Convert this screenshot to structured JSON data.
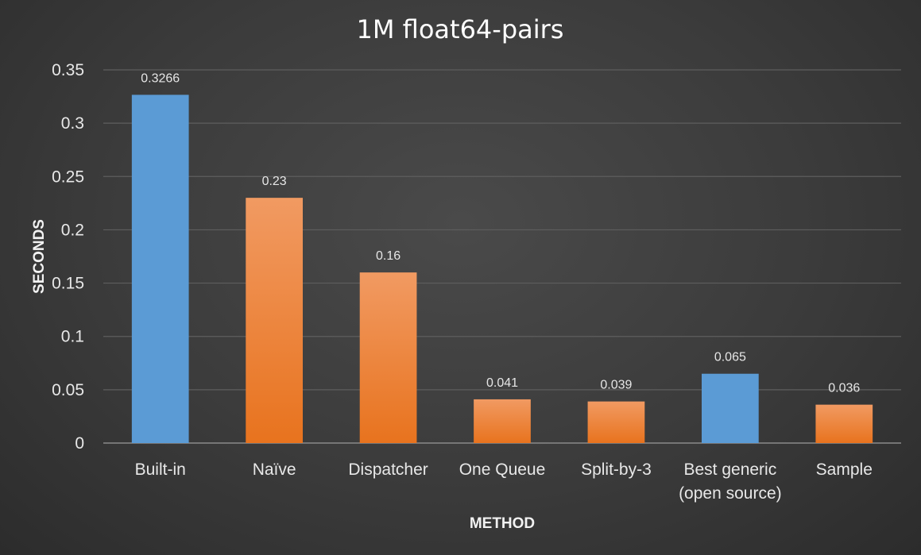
{
  "chart_data": {
    "type": "bar",
    "title": "1M float64-pairs",
    "xlabel": "METHOD",
    "ylabel": "SECONDS",
    "categories": [
      "Built-in",
      "Naïve",
      "Dispatcher",
      "One Queue",
      "Split-by-3",
      "Best generic\n(open source)",
      "Sample"
    ],
    "values": [
      0.3266,
      0.23,
      0.16,
      0.041,
      0.039,
      0.065,
      0.036
    ],
    "value_labels": [
      "0.3266",
      "0.23",
      "0.16",
      "0.041",
      "0.039",
      "0.065",
      "0.036"
    ],
    "bar_colors": [
      "#5b9bd5",
      "#ed7d31",
      "#ed7d31",
      "#ed7d31",
      "#ed7d31",
      "#5b9bd5",
      "#ed7d31"
    ],
    "ylim": [
      0,
      0.35
    ],
    "yticks": [
      "0",
      "0.05",
      "0.1",
      "0.15",
      "0.2",
      "0.25",
      "0.3",
      "0.35"
    ],
    "grid": true,
    "legend": "none"
  },
  "colors": {
    "background": "#3b3b3b",
    "blue_bar": "#5b9bd5",
    "orange_bar": "#ed7d31",
    "text": "#ffffff"
  }
}
